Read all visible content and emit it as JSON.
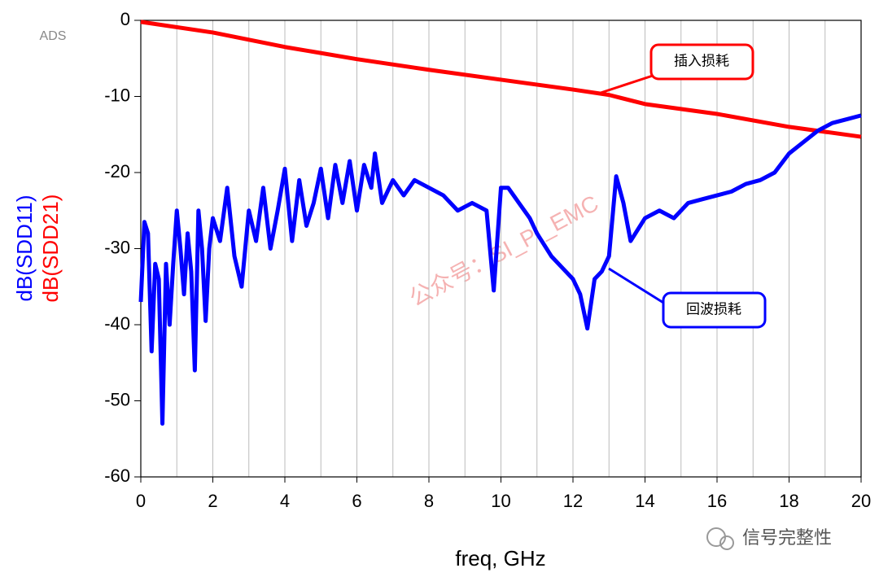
{
  "chart_data": {
    "type": "line",
    "watermark_top_left": "ADS",
    "xlabel": "freq, GHz",
    "ylabels": [
      {
        "text": "dB(SDD11)",
        "color": "#0000ff"
      },
      {
        "text": "dB(SDD21)",
        "color": "#ff0000"
      }
    ],
    "xlim": [
      0,
      20
    ],
    "ylim": [
      -60,
      0
    ],
    "xticks": [
      0,
      2,
      4,
      6,
      8,
      10,
      12,
      14,
      16,
      18,
      20
    ],
    "x_minor_ticks": [
      1,
      3,
      5,
      7,
      9,
      11,
      13,
      15,
      17,
      19
    ],
    "yticks": [
      0,
      -10,
      -20,
      -30,
      -40,
      -50,
      -60
    ],
    "grid": true,
    "series": [
      {
        "name": "dB(SDD21)",
        "color": "#ff0000",
        "x": [
          0,
          2,
          4,
          6,
          8,
          10,
          12,
          13,
          14,
          16,
          18,
          20
        ],
        "values": [
          -0.2,
          -1.6,
          -3.5,
          -5.1,
          -6.5,
          -7.8,
          -9.1,
          -9.8,
          -11,
          -12.3,
          -14,
          -15.3
        ]
      },
      {
        "name": "dB(SDD11)",
        "color": "#0000ff",
        "x": [
          0,
          0.1,
          0.2,
          0.3,
          0.4,
          0.5,
          0.6,
          0.7,
          0.8,
          0.9,
          1.0,
          1.1,
          1.2,
          1.3,
          1.4,
          1.5,
          1.6,
          1.7,
          1.8,
          1.9,
          2.0,
          2.2,
          2.4,
          2.6,
          2.8,
          3.0,
          3.2,
          3.4,
          3.6,
          3.8,
          4.0,
          4.2,
          4.4,
          4.6,
          4.8,
          5.0,
          5.2,
          5.4,
          5.6,
          5.8,
          6.0,
          6.2,
          6.4,
          6.5,
          6.7,
          7.0,
          7.3,
          7.6,
          8.0,
          8.4,
          8.8,
          9.2,
          9.6,
          9.8,
          10.0,
          10.2,
          10.5,
          10.8,
          11.0,
          11.4,
          11.8,
          12.0,
          12.2,
          12.4,
          12.6,
          12.8,
          13.0,
          13.2,
          13.4,
          13.6,
          14.0,
          14.4,
          14.8,
          15.2,
          15.6,
          16.0,
          16.4,
          16.8,
          17.2,
          17.6,
          18.0,
          18.4,
          18.8,
          19.2,
          19.6,
          20.0
        ],
        "values": [
          -37,
          -26.5,
          -28,
          -43.5,
          -32,
          -34,
          -53,
          -32,
          -40,
          -32,
          -25,
          -30,
          -36,
          -28,
          -33,
          -46,
          -25,
          -30,
          -39.5,
          -30,
          -26,
          -29,
          -22,
          -31,
          -35,
          -25,
          -29,
          -22,
          -30,
          -25,
          -19.5,
          -29,
          -21,
          -27,
          -24,
          -19.5,
          -26,
          -19,
          -24,
          -18.5,
          -25,
          -19,
          -22,
          -17.5,
          -24,
          -21,
          -23,
          -21,
          -22,
          -23,
          -25,
          -24,
          -25,
          -35.5,
          -22,
          -22,
          -24,
          -26,
          -28,
          -31,
          -33,
          -34,
          -36,
          -40.5,
          -34,
          -33,
          -31,
          -20.5,
          -24,
          -29,
          -26,
          -25,
          -26,
          -24,
          -23.5,
          -23,
          -22.5,
          -21.5,
          -21,
          -20,
          -17.5,
          -16,
          -14.5,
          -13.5,
          -13,
          -12.5
        ]
      }
    ],
    "annotations": [
      {
        "text": "插入损耗",
        "color": "#ff0000"
      },
      {
        "text": "回波损耗",
        "color": "#0000ff"
      }
    ],
    "watermark": "公众号：SI_PI_EMC",
    "footer": "信号完整性"
  }
}
